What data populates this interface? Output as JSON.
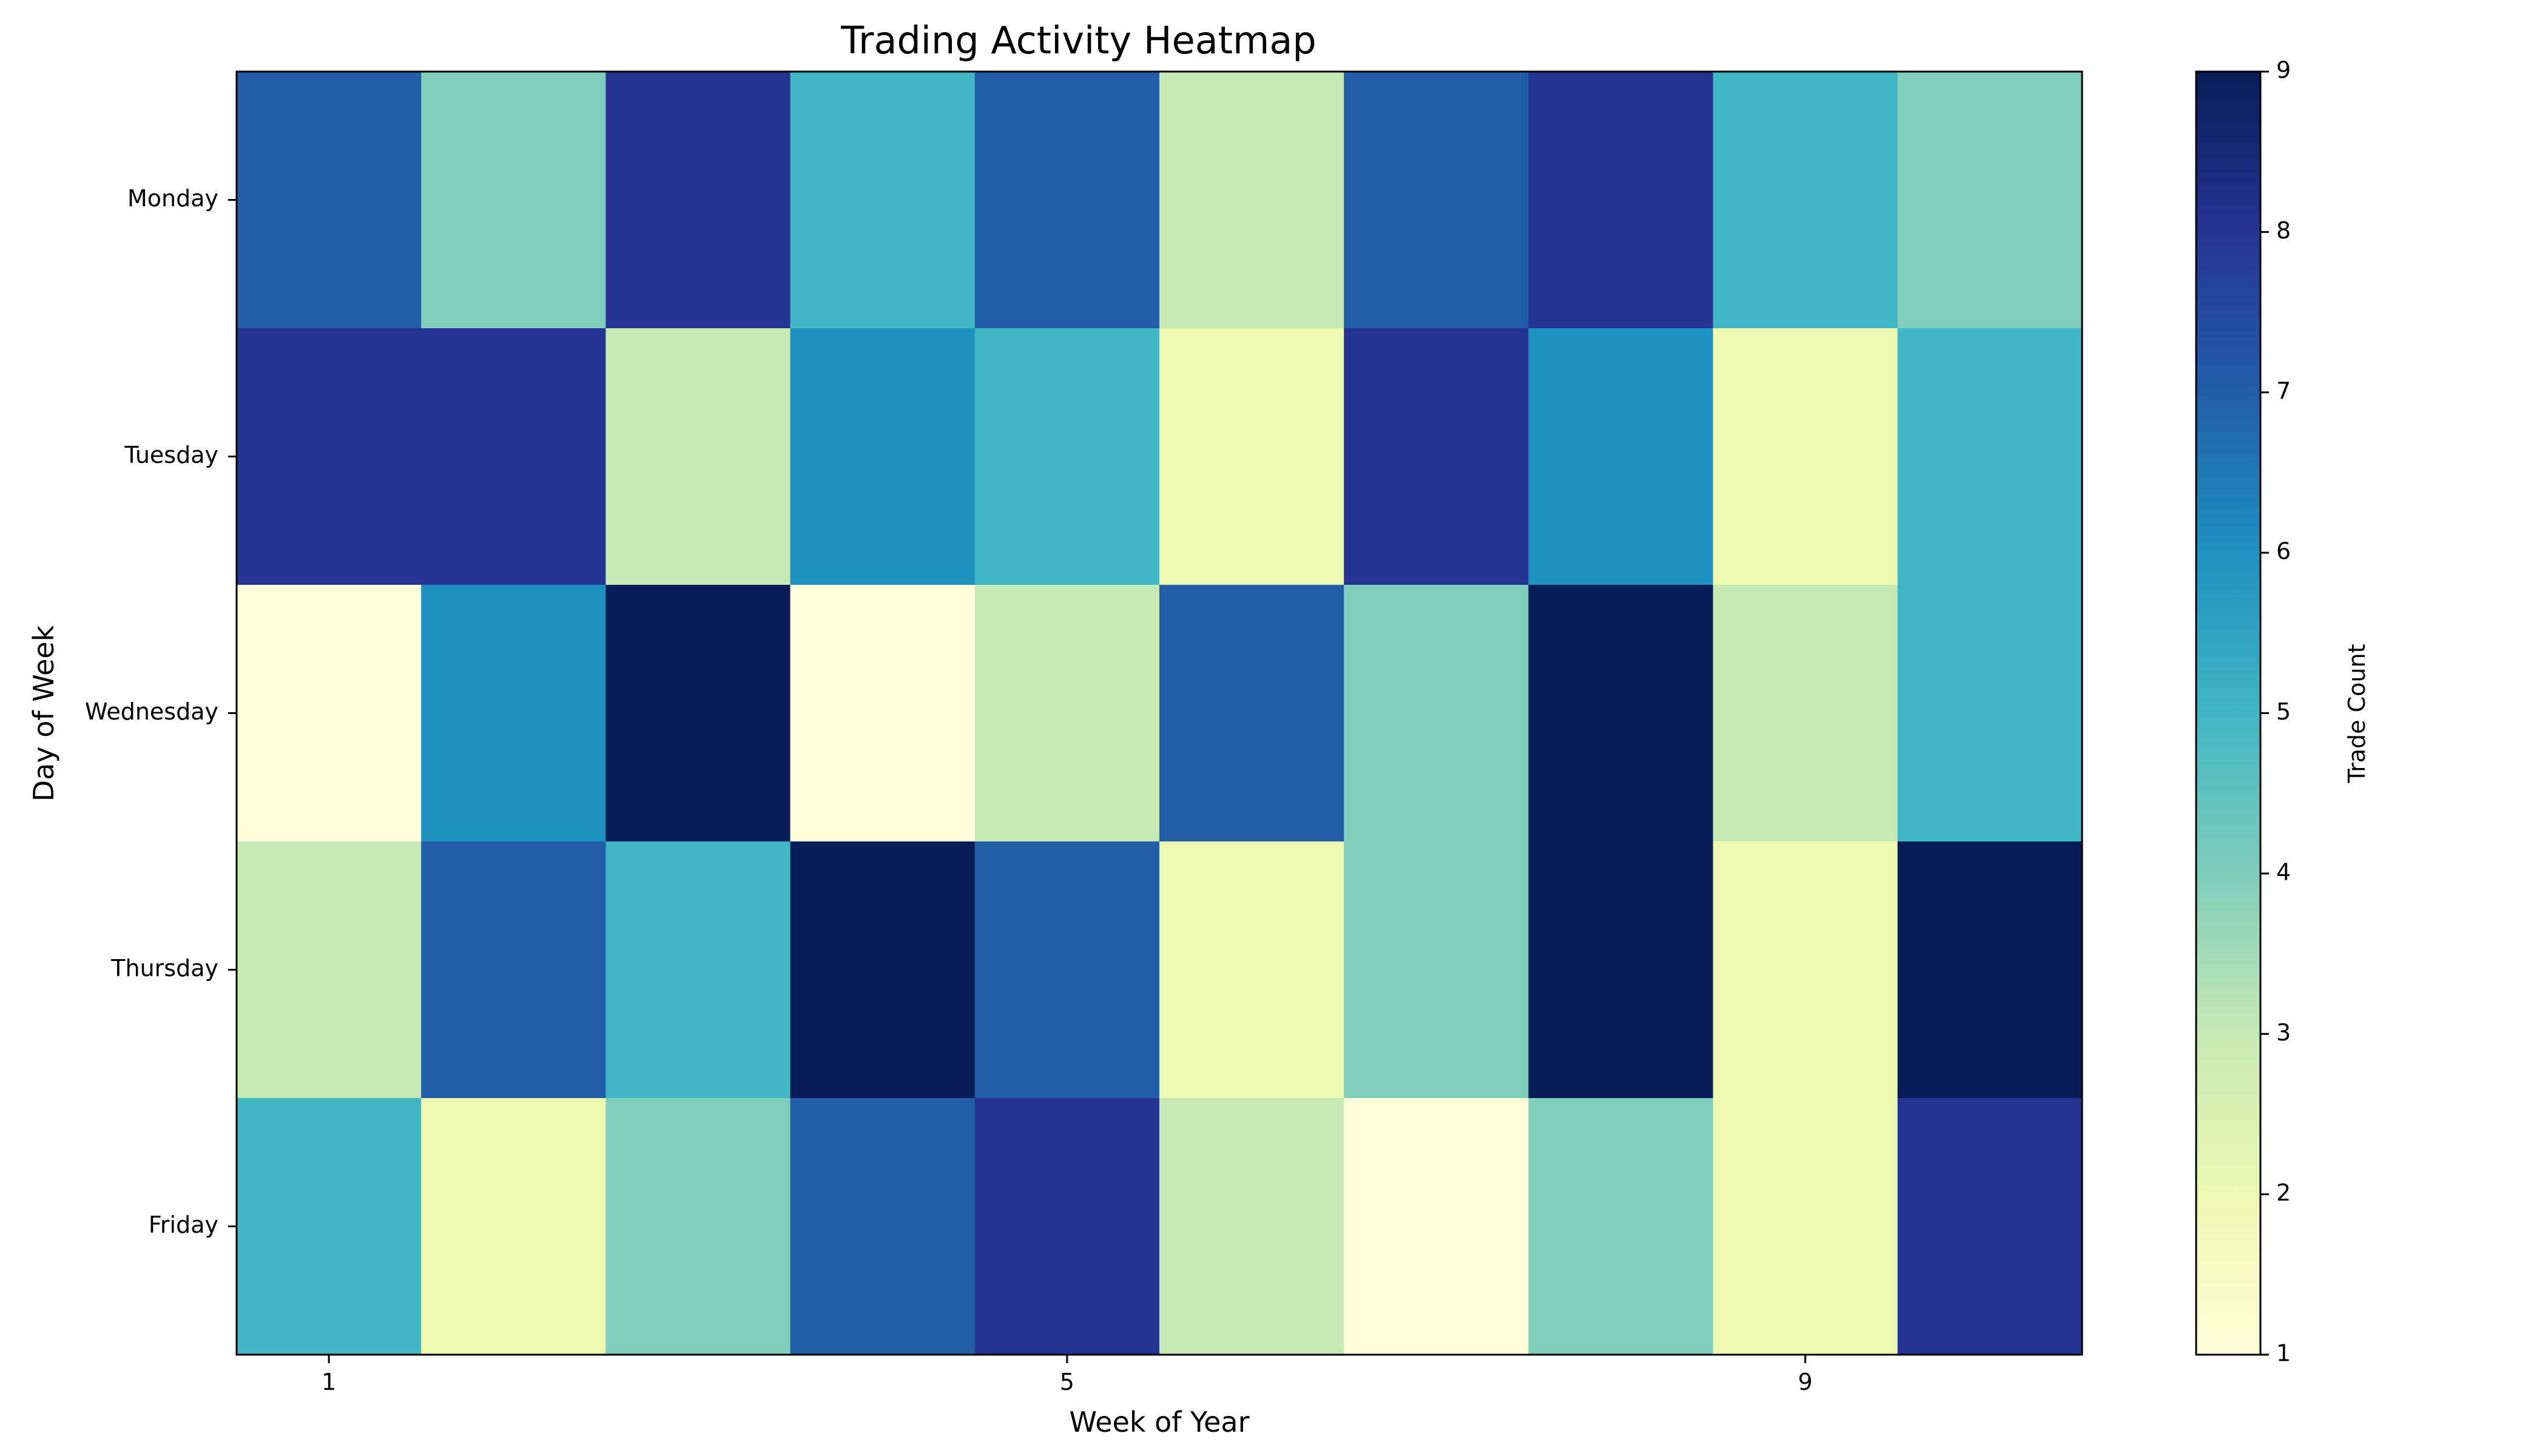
{
  "chart_data": {
    "type": "heatmap",
    "title": "Trading Activity Heatmap",
    "xlabel": "Week of Year",
    "ylabel": "Day of Week",
    "rows": [
      "Monday",
      "Tuesday",
      "Wednesday",
      "Thursday",
      "Friday"
    ],
    "columns": [
      1,
      2,
      3,
      4,
      5,
      6,
      7,
      8,
      9,
      10
    ],
    "x_tick_labels": [
      "1",
      "5",
      "9"
    ],
    "x_tick_values": [
      1,
      5,
      9
    ],
    "values": [
      [
        7,
        4,
        8,
        5,
        7,
        3,
        7,
        8,
        5,
        4
      ],
      [
        8,
        8,
        3,
        6,
        5,
        2,
        8,
        6,
        2,
        5
      ],
      [
        1,
        6,
        9,
        1,
        3,
        7,
        4,
        9,
        3,
        5
      ],
      [
        3,
        7,
        5,
        9,
        7,
        2,
        4,
        9,
        2,
        9
      ],
      [
        5,
        2,
        4,
        7,
        8,
        3,
        1,
        4,
        2,
        8
      ]
    ],
    "colorbar": {
      "label": "Trade Count",
      "min": 1,
      "max": 9,
      "ticks": [
        1,
        2,
        3,
        4,
        5,
        6,
        7,
        8,
        9
      ],
      "colormap": "YlGnBu",
      "colors": [
        "#ffffd9",
        "#edf8b1",
        "#c7e9b4",
        "#7fcdbb",
        "#41b6c4",
        "#1d91c0",
        "#225ea8",
        "#253494",
        "#081d58"
      ]
    },
    "grid": false,
    "legend": "colorbar-right"
  }
}
